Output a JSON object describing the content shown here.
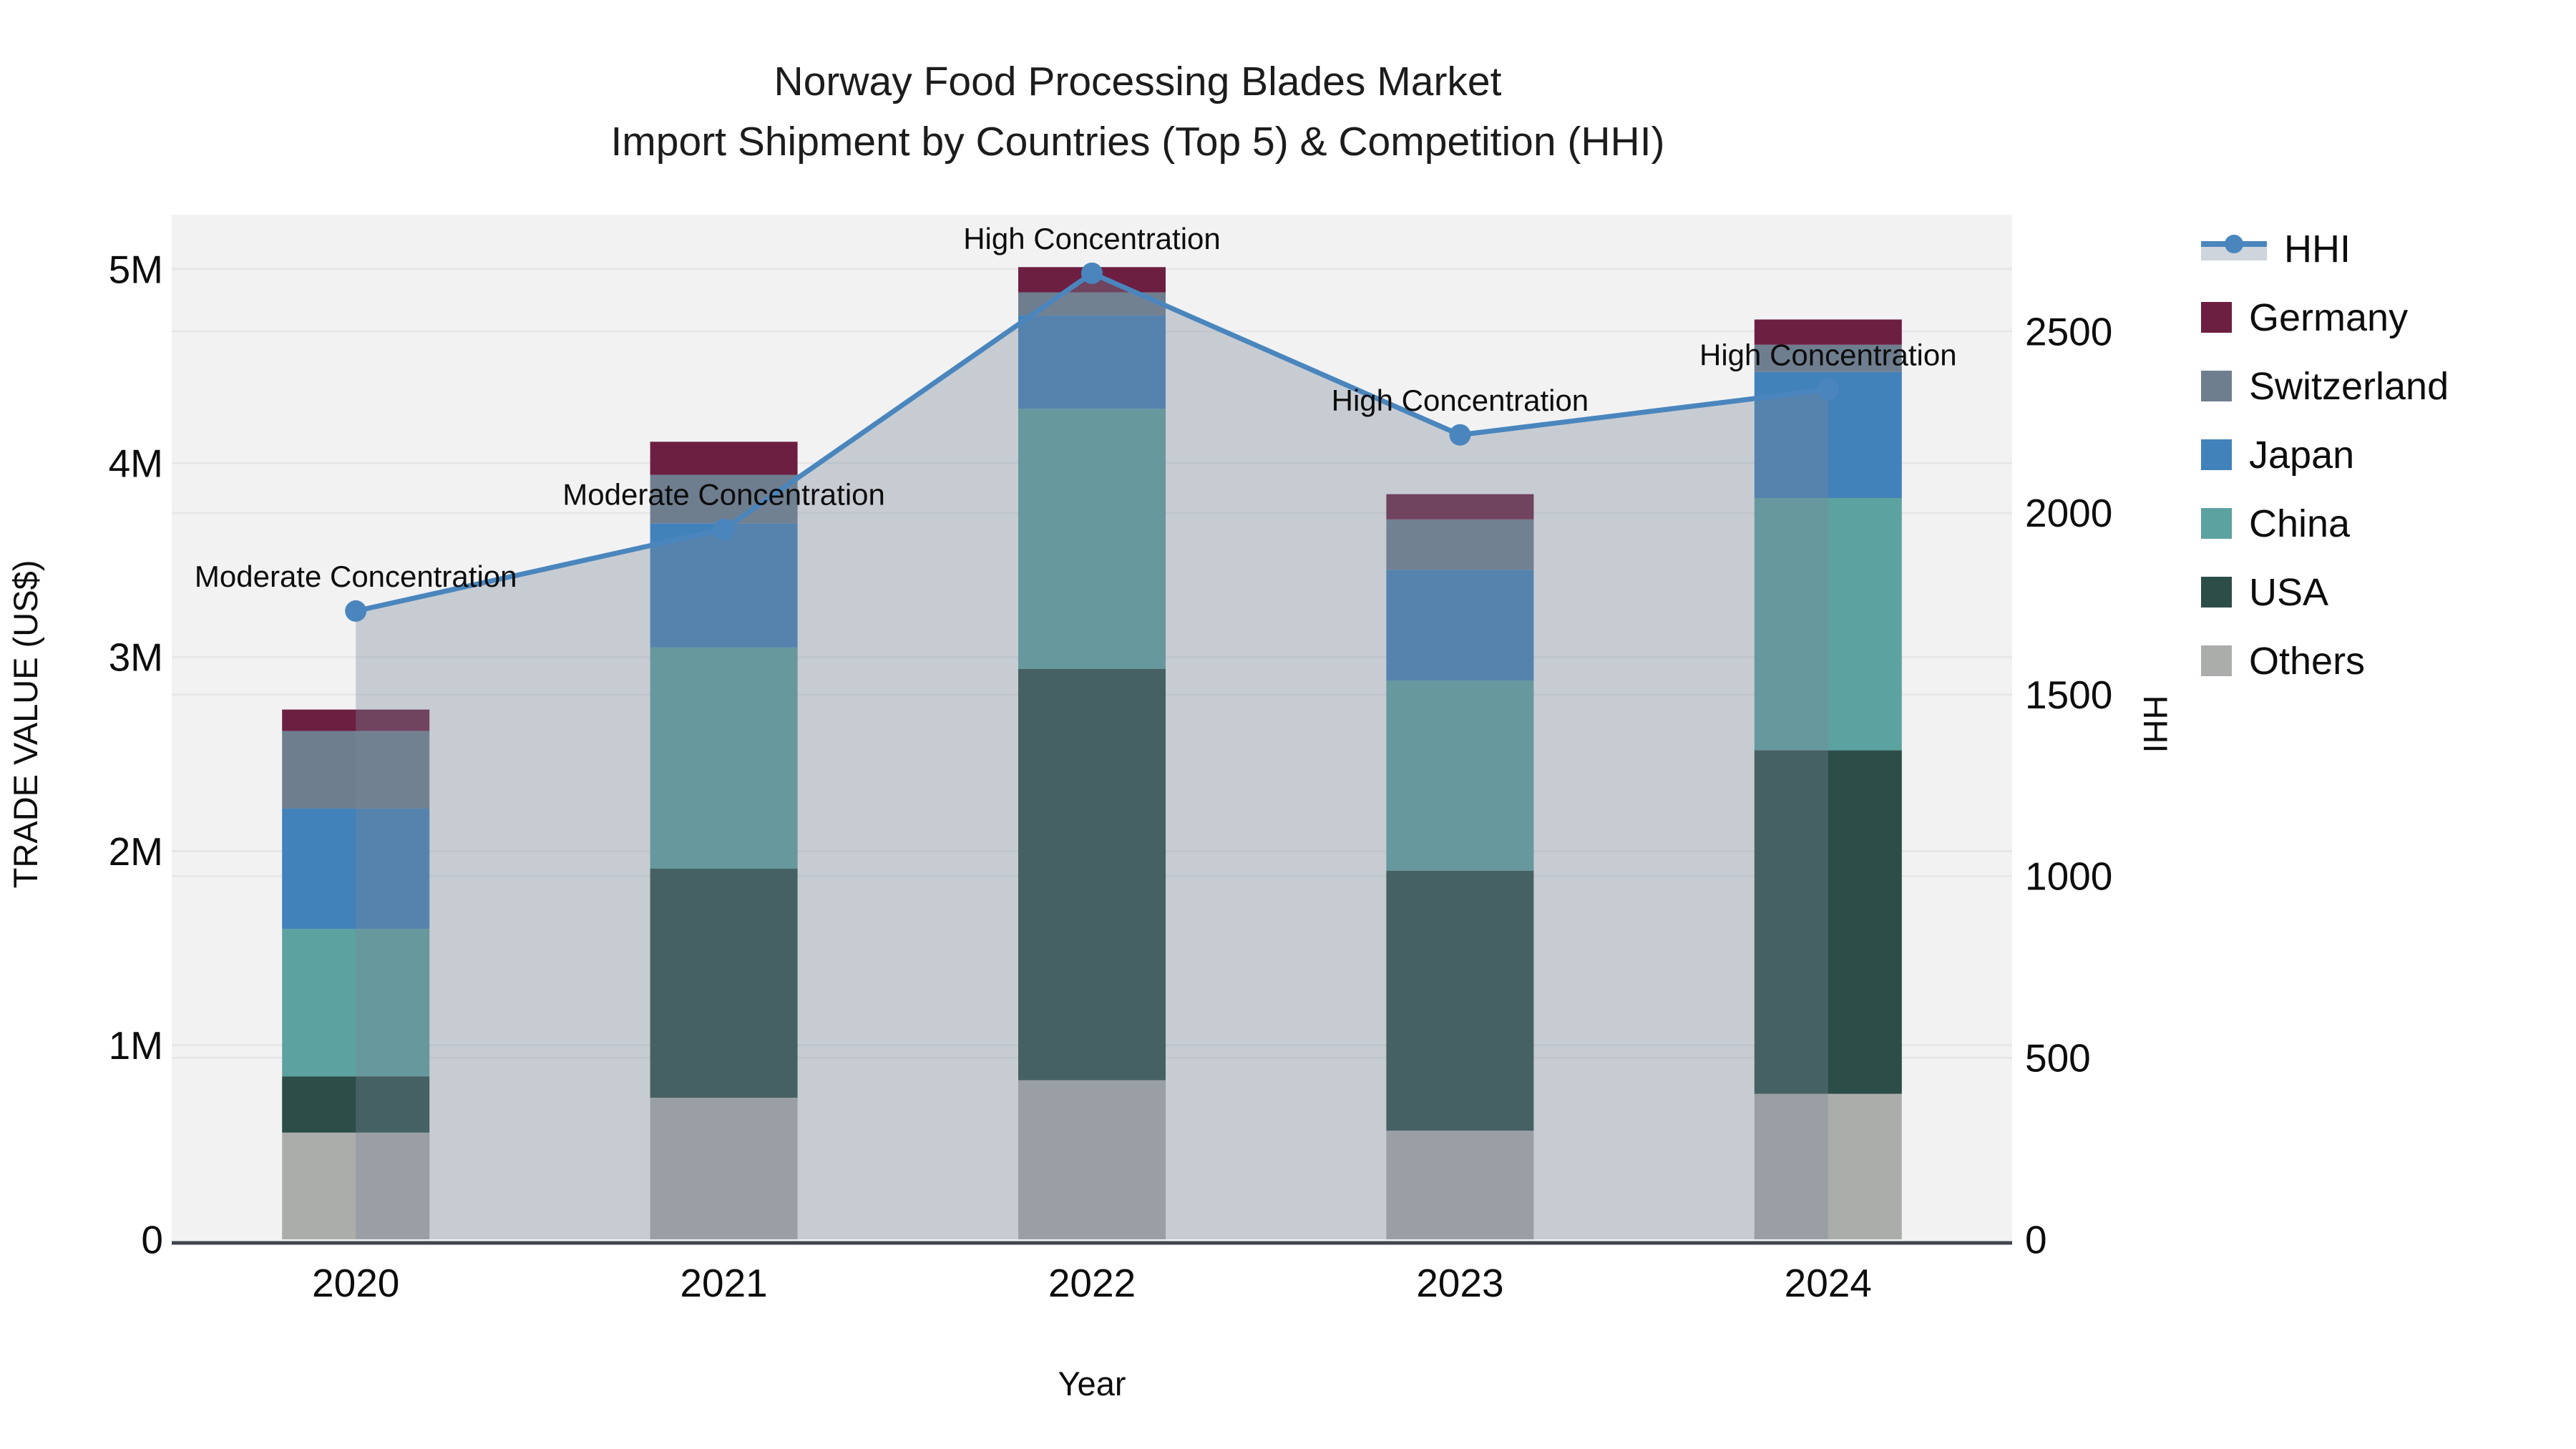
{
  "title": {
    "line1": "Norway Food Processing Blades Market",
    "line2": "Import Shipment by Countries (Top 5) & Competition (HHI)"
  },
  "axes": {
    "x": {
      "title": "Year",
      "ticks": [
        "2020",
        "2021",
        "2022",
        "2023",
        "2024"
      ]
    },
    "y_left": {
      "title": "TRADE VALUE (US$)",
      "ticks": [
        "0",
        "1M",
        "2M",
        "3M",
        "4M",
        "5M"
      ],
      "tick_values_millions": [
        0,
        1,
        2,
        3,
        4,
        5
      ]
    },
    "y_right": {
      "title": "HHI",
      "ticks": [
        "0",
        "500",
        "1000",
        "1500",
        "2000",
        "2500"
      ],
      "tick_values": [
        0,
        500,
        1000,
        1500,
        2000,
        2500
      ]
    }
  },
  "legend": {
    "items": [
      {
        "id": "hhi",
        "label": "HHI",
        "type": "line",
        "color": "#4A86BD",
        "band_color": "#CFD5DC"
      },
      {
        "id": "germany",
        "label": "Germany",
        "type": "swatch",
        "color": "#6C1F41"
      },
      {
        "id": "switzerland",
        "label": "Switzerland",
        "type": "swatch",
        "color": "#6F7E8F"
      },
      {
        "id": "japan",
        "label": "Japan",
        "type": "swatch",
        "color": "#4282BA"
      },
      {
        "id": "china",
        "label": "China",
        "type": "swatch",
        "color": "#5CA2A0"
      },
      {
        "id": "usa",
        "label": "USA",
        "type": "swatch",
        "color": "#2C4D48"
      },
      {
        "id": "others",
        "label": "Others",
        "type": "swatch",
        "color": "#ABADAB"
      }
    ]
  },
  "chart_data": {
    "type": "bar",
    "subtype": "stacked-bars-with-line-overlay",
    "categories": [
      "2020",
      "2021",
      "2022",
      "2023",
      "2024"
    ],
    "bar_unit": "US$ millions (trade value, left axis)",
    "series": [
      {
        "name": "Others",
        "color": "#ABADAB",
        "values": [
          0.55,
          0.73,
          0.82,
          0.56,
          0.75
        ]
      },
      {
        "name": "USA",
        "color": "#2C4D48",
        "values": [
          0.29,
          1.18,
          2.12,
          1.34,
          1.77
        ]
      },
      {
        "name": "China",
        "color": "#5CA2A0",
        "values": [
          0.76,
          1.14,
          1.34,
          0.98,
          1.3
        ]
      },
      {
        "name": "Japan",
        "color": "#4282BA",
        "values": [
          0.62,
          0.64,
          0.48,
          0.57,
          0.65
        ]
      },
      {
        "name": "Switzerland",
        "color": "#6F7E8F",
        "values": [
          0.4,
          0.25,
          0.12,
          0.26,
          0.14
        ]
      },
      {
        "name": "Germany",
        "color": "#6C1F41",
        "values": [
          0.11,
          0.17,
          0.13,
          0.13,
          0.13
        ]
      }
    ],
    "bar_totals_millions": [
      2.73,
      4.11,
      5.01,
      3.84,
      4.74
    ],
    "hhi": {
      "name": "HHI",
      "axis": "right",
      "color": "#4A86BD",
      "fill_color": "rgba(119,136,153,0.35)",
      "values": [
        1730,
        1955,
        2660,
        2215,
        2340
      ]
    },
    "annotations": [
      {
        "category": "2020",
        "text": "Moderate Concentration"
      },
      {
        "category": "2021",
        "text": "Moderate Concentration"
      },
      {
        "category": "2022",
        "text": "High Concentration"
      },
      {
        "category": "2023",
        "text": "High Concentration"
      },
      {
        "category": "2024",
        "text": "High Concentration"
      }
    ],
    "title": "Norway Food Processing Blades Market — Import Shipment by Countries (Top 5) & Competition (HHI)",
    "xlabel": "Year",
    "ylabel_left": "TRADE VALUE (US$)",
    "ylabel_right": "HHI",
    "ylim_left_millions": [
      0,
      5.29
    ],
    "ylim_right": [
      0,
      2823
    ],
    "grid": true,
    "legend_position": "right"
  },
  "style": {
    "plot_bg": "#F2F2F3",
    "gridline_color": "#E5E6E8",
    "axis_line_color": "#41464C",
    "text_color": "#0d0d0d"
  }
}
